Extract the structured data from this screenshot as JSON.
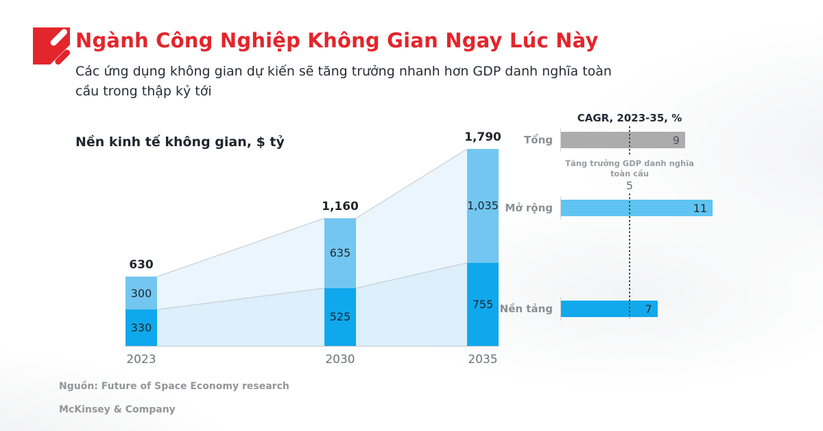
{
  "header": {
    "title": "Ngành Công Nghiệp Không Gian Ngay Lúc Này",
    "subtitle": "Các ứng dụng không gian dự kiến sẽ tăng trưởng nhanh hơn GDP danh nghĩa toàn cầu trong thập kỷ tới"
  },
  "colors": {
    "accent_red": "#E3252C",
    "light_blue": "#72C6F0",
    "dark_blue": "#0FA8EC",
    "gray_bar": "#ACACAC",
    "band_upper": "#EAF5FD",
    "band_lower": "#DCEFFB",
    "band_edge": "#C3C7CB"
  },
  "chart_data": [
    {
      "type": "bar",
      "subtype": "stacked-column",
      "title": "Nền kinh tế không gian, $ tỷ",
      "categories": [
        "2023",
        "2030",
        "2035"
      ],
      "series": [
        {
          "name": "Mở rộng",
          "values": [
            300,
            635,
            1035
          ],
          "color": "#72C6F0"
        },
        {
          "name": "Nền tảng",
          "values": [
            330,
            525,
            755
          ],
          "color": "#0FA8EC"
        }
      ],
      "segment_display": [
        [
          "300",
          "330"
        ],
        [
          "635",
          "525"
        ],
        [
          "1,035",
          "755"
        ]
      ],
      "totals": [
        630,
        1160,
        1790
      ],
      "total_display": [
        "630",
        "1,160",
        "1,790"
      ],
      "ylim": [
        0,
        1900
      ],
      "legend_position": "none",
      "grid": false
    },
    {
      "type": "bar",
      "subtype": "horizontal",
      "title": "CAGR, 2023-35, %",
      "categories": [
        "Tổng",
        "Mở rộng",
        "Nền tảng"
      ],
      "values": [
        9,
        11,
        7
      ],
      "value_display": [
        "9",
        "11",
        "7"
      ],
      "bar_colors": [
        "#ACACAC",
        "#5FC4F1",
        "#12A9EC"
      ],
      "value_colors": [
        "#4E5357",
        "#22282E",
        "#22282E"
      ],
      "reference_line": {
        "value": 5,
        "display": "5",
        "label": "Tăng trưởng GDP danh nghĩa toàn cầu"
      },
      "xlim": [
        0,
        11
      ],
      "grid": false
    }
  ],
  "footer": {
    "source": "Nguồn: Future of Space Economy research",
    "brand": "McKinsey & Company"
  }
}
